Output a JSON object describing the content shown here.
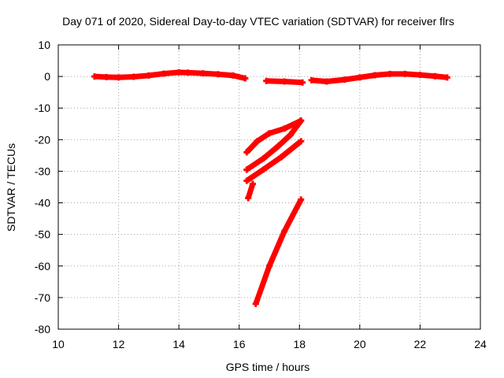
{
  "chart_data": {
    "type": "line",
    "title": "Day 071 of 2020, Sidereal Day-to-day VTEC variation (SDTVAR) for receiver flrs",
    "xlabel": "GPS time / hours",
    "ylabel": "SDTVAR / TECUs",
    "xlim": [
      10,
      24
    ],
    "ylim": [
      -80,
      10
    ],
    "xticks": [
      10,
      12,
      14,
      16,
      18,
      20,
      22,
      24
    ],
    "yticks": [
      10,
      0,
      -10,
      -20,
      -30,
      -40,
      -50,
      -60,
      -70,
      -80
    ],
    "grid": true,
    "legend": "none",
    "series_color": "#ff0000",
    "series": [
      {
        "segments": [
          [
            [
              11.2,
              0
            ],
            [
              11.6,
              -0.2
            ],
            [
              12.0,
              -0.3
            ],
            [
              12.5,
              -0.1
            ],
            [
              13.0,
              0.3
            ],
            [
              13.5,
              0.9
            ],
            [
              14.0,
              1.3
            ],
            [
              14.3,
              1.2
            ],
            [
              14.8,
              1.0
            ],
            [
              15.3,
              0.7
            ],
            [
              15.8,
              0.3
            ],
            [
              16.2,
              -0.6
            ]
          ],
          [
            [
              16.9,
              -1.4
            ],
            [
              17.5,
              -1.6
            ],
            [
              18.1,
              -1.9
            ]
          ],
          [
            [
              18.4,
              -1.2
            ],
            [
              18.9,
              -1.6
            ],
            [
              19.5,
              -1.0
            ],
            [
              20.0,
              -0.3
            ],
            [
              20.5,
              0.4
            ],
            [
              21.0,
              0.8
            ],
            [
              21.5,
              0.8
            ],
            [
              22.0,
              0.5
            ],
            [
              22.5,
              0.1
            ],
            [
              22.9,
              -0.3
            ]
          ],
          [
            [
              16.25,
              -24
            ],
            [
              16.6,
              -20.5
            ],
            [
              17.0,
              -18
            ],
            [
              17.5,
              -16.5
            ],
            [
              18.05,
              -14
            ]
          ],
          [
            [
              16.25,
              -29.5
            ],
            [
              16.8,
              -26
            ],
            [
              17.3,
              -22
            ],
            [
              17.7,
              -18.5
            ],
            [
              18.05,
              -14
            ]
          ],
          [
            [
              16.25,
              -33
            ],
            [
              16.8,
              -29.5
            ],
            [
              17.4,
              -25.5
            ],
            [
              18.05,
              -20.5
            ]
          ],
          [
            [
              16.3,
              -38.5
            ],
            [
              16.45,
              -34
            ]
          ],
          [
            [
              16.55,
              -72
            ],
            [
              17.0,
              -60
            ],
            [
              17.5,
              -49
            ],
            [
              18.05,
              -39
            ]
          ]
        ]
      }
    ]
  }
}
